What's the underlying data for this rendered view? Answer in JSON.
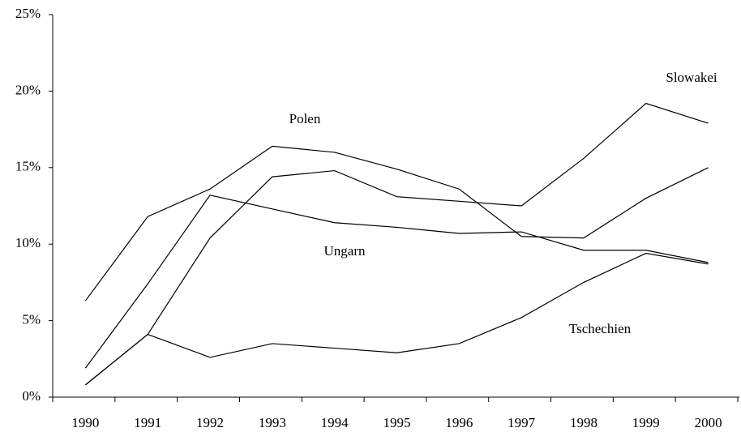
{
  "chart_data": {
    "type": "line",
    "categories": [
      "1990",
      "1991",
      "1992",
      "1993",
      "1994",
      "1995",
      "1996",
      "1997",
      "1998",
      "1999",
      "2000"
    ],
    "series": [
      {
        "name": "Polen",
        "color": "#000000",
        "values": [
          6.3,
          11.8,
          13.6,
          16.4,
          16.0,
          14.9,
          13.6,
          10.5,
          10.4,
          13.0,
          15.0
        ]
      },
      {
        "name": "Slowakei",
        "color": "#000000",
        "values": [
          0.8,
          4.1,
          10.4,
          14.4,
          14.8,
          13.1,
          12.8,
          12.5,
          15.6,
          19.2,
          17.9
        ]
      },
      {
        "name": "Ungarn",
        "color": "#000000",
        "values": [
          1.9,
          7.4,
          13.2,
          12.3,
          11.4,
          11.1,
          10.7,
          10.8,
          9.6,
          9.6,
          8.8
        ]
      },
      {
        "name": "Tschechien",
        "color": "#000000",
        "values": [
          0.8,
          4.1,
          2.6,
          3.5,
          3.2,
          2.9,
          3.5,
          5.2,
          7.5,
          9.4,
          8.7
        ]
      }
    ],
    "ylim": [
      0,
      25
    ],
    "yticks": [
      {
        "value": 0,
        "label": "0%"
      },
      {
        "value": 5,
        "label": "5%"
      },
      {
        "value": 10,
        "label": "10%"
      },
      {
        "value": 15,
        "label": "15%"
      },
      {
        "value": 20,
        "label": "20%"
      },
      {
        "value": 25,
        "label": "25%"
      }
    ],
    "grid": false
  }
}
